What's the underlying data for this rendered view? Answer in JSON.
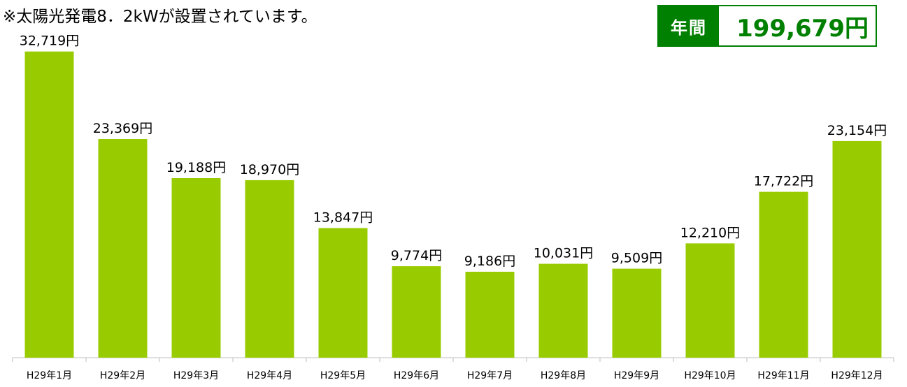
{
  "note": "※太陽光発電8．2kWが設置されています。",
  "annual": {
    "label": "年間",
    "value": "199,679円"
  },
  "colors": {
    "bar": "#99cc00",
    "accent": "#008000",
    "axis": "#bfbfbf"
  },
  "chart_data": {
    "type": "bar",
    "title": "",
    "xlabel": "",
    "ylabel": "",
    "categories": [
      "H29年1月",
      "H29年2月",
      "H29年3月",
      "H29年4月",
      "H29年5月",
      "H29年6月",
      "H29年7月",
      "H29年8月",
      "H29年9月",
      "H29年10月",
      "H29年11月",
      "H29年12月"
    ],
    "values": [
      32719,
      23369,
      19188,
      18970,
      13847,
      9774,
      9186,
      10031,
      9509,
      12210,
      17722,
      23154
    ],
    "data_labels": [
      "32,719円",
      "23,369円",
      "19,188円",
      "18,970円",
      "13,847円",
      "9,774円",
      "9,186円",
      "10,031円",
      "9,509円",
      "12,210円",
      "17,722円",
      "23,154円"
    ],
    "ylim": [
      0,
      35000
    ],
    "grid": false,
    "legend": "none"
  }
}
